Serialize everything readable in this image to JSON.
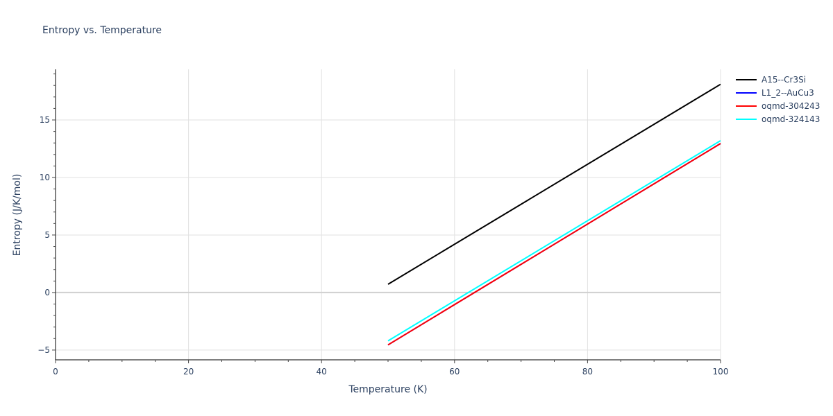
{
  "chart_data": {
    "type": "line",
    "title": "Entropy vs. Temperature",
    "xlabel": "Temperature (K)",
    "ylabel": "Entropy (J/K/mol)",
    "xlim": [
      0,
      100
    ],
    "ylim": [
      -5.85,
      19.4
    ],
    "x_ticks": [
      0,
      20,
      40,
      60,
      80,
      100
    ],
    "y_ticks": [
      -5,
      0,
      5,
      10,
      15
    ],
    "grid": true,
    "legend_position": "right",
    "series": [
      {
        "name": "A15--Cr3Si",
        "color": "#000000",
        "x": [
          50,
          100
        ],
        "y": [
          0.72,
          18.1
        ]
      },
      {
        "name": "L1_2--AuCu3",
        "color": "#0000ff",
        "x": [
          50,
          100
        ],
        "y": [
          -4.55,
          12.95
        ]
      },
      {
        "name": "oqmd-304243",
        "color": "#ff0000",
        "x": [
          50,
          100
        ],
        "y": [
          -4.55,
          12.95
        ]
      },
      {
        "name": "oqmd-324143",
        "color": "#00ffff",
        "x": [
          50,
          100
        ],
        "y": [
          -4.2,
          13.2
        ]
      }
    ]
  }
}
